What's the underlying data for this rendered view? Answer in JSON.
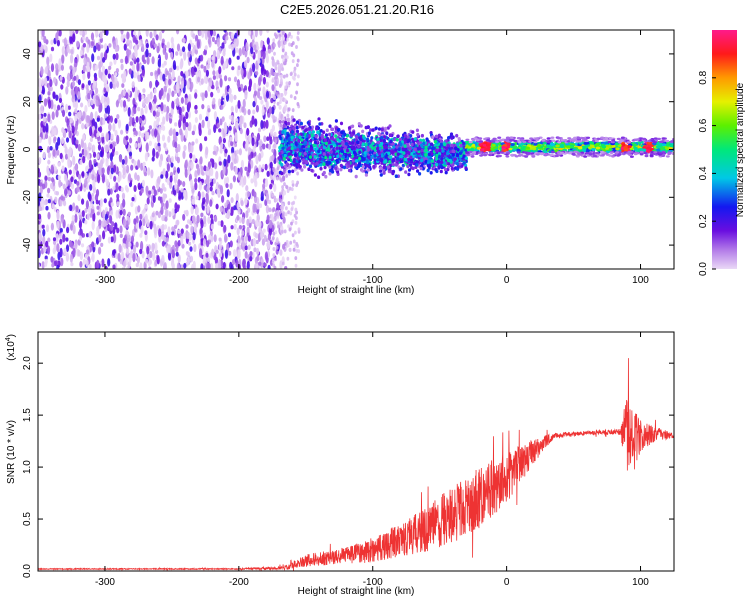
{
  "title": "C2E5.2026.051.21.20.R16",
  "chart_data": [
    {
      "type": "heatmap",
      "xlabel": "Height of straight line (km)",
      "ylabel": "Frequency (Hz)",
      "xlim": [
        -350,
        125
      ],
      "ylim": [
        -50,
        50
      ],
      "xticks": [
        "-300",
        "-200",
        "-100",
        "0",
        "100"
      ],
      "xtick_values": [
        -300,
        -200,
        -100,
        0,
        100
      ],
      "yticks": [
        "-40",
        "-20",
        "0",
        "20",
        "40"
      ],
      "ytick_values": [
        -40,
        -20,
        0,
        20,
        40
      ],
      "colorbar": {
        "label": "Normalized spectral amplitude",
        "ticks": [
          "0.0",
          "0.2",
          "0.4",
          "0.6",
          "0.8"
        ],
        "tick_values": [
          0.0,
          0.2,
          0.4,
          0.6,
          0.8
        ],
        "range": [
          0,
          1
        ],
        "colormap": "rainbow (lavender-purple-blue-cyan-green-yellow-orange-red-magenta)"
      },
      "regions": [
        {
          "x": [
            -350,
            -170
          ],
          "freq": [
            -50,
            50
          ],
          "amplitude": [
            0.0,
            0.1
          ]
        },
        {
          "x": [
            -170,
            -30
          ],
          "freq": [
            -12,
            8
          ],
          "amplitude": [
            0.1,
            0.4
          ]
        },
        {
          "x": [
            -30,
            125
          ],
          "freq": [
            -1,
            3
          ],
          "amplitude": [
            0.2,
            1.0
          ]
        }
      ]
    },
    {
      "type": "line",
      "xlabel": "Height of straight line (km)",
      "ylabel": "SNR (10 * v/v)",
      "y_multiplier": "(x10",
      "y_multiplier_exp": "4",
      "xlim": [
        -350,
        125
      ],
      "ylim": [
        0,
        2.3
      ],
      "xticks": [
        "-300",
        "-200",
        "-100",
        "0",
        "100"
      ],
      "xtick_values": [
        -300,
        -200,
        -100,
        0,
        100
      ],
      "yticks": [
        "0.0",
        "0.5",
        "1.0",
        "1.5",
        "2.0"
      ],
      "ytick_values": [
        0.0,
        0.5,
        1.0,
        1.5,
        2.0
      ],
      "series_color": "#ee3333",
      "envelope": {
        "x": [
          -350,
          -200,
          -165,
          -150,
          -120,
          -100,
          -80,
          -60,
          -40,
          -20,
          0,
          20,
          35,
          60,
          85,
          90,
          95,
          100,
          110,
          125
        ],
        "mean": [
          0.02,
          0.02,
          0.03,
          0.1,
          0.15,
          0.2,
          0.3,
          0.4,
          0.55,
          0.7,
          0.9,
          1.15,
          1.3,
          1.33,
          1.34,
          1.3,
          1.25,
          1.3,
          1.32,
          1.3
        ],
        "spread": [
          0.005,
          0.005,
          0.02,
          0.06,
          0.08,
          0.12,
          0.16,
          0.22,
          0.28,
          0.3,
          0.25,
          0.12,
          0.03,
          0.02,
          0.03,
          0.45,
          0.3,
          0.15,
          0.08,
          0.02
        ]
      }
    }
  ]
}
